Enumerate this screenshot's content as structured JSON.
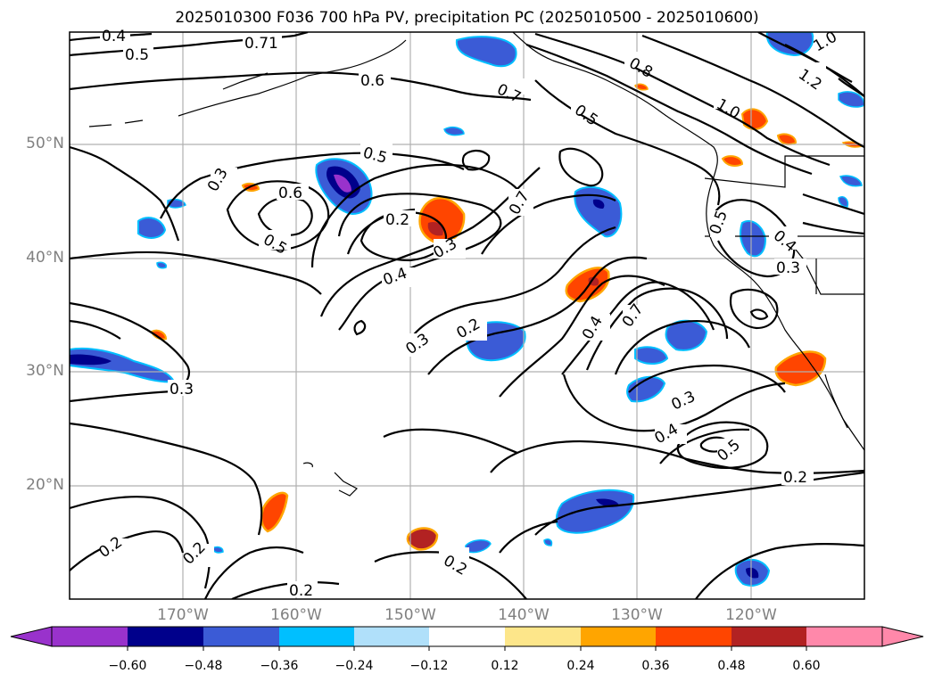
{
  "title": "2025010300 F036 700 hPa PV, precipitation PC (2025010500 - 2025010600)",
  "map": {
    "lat_labels": [
      "50°N",
      "40°N",
      "30°N",
      "20°N"
    ],
    "lon_labels": [
      "170°W",
      "160°W",
      "150°W",
      "140°W",
      "130°W",
      "120°W"
    ],
    "contour_labels": [
      "0.4",
      "0.5",
      "0.71",
      "0.6",
      "0.7",
      "0.5",
      "0.8",
      "1.0",
      "1.2",
      "1.0",
      "0.5",
      "0.3",
      "0.6",
      "0.5",
      "0.2",
      "0.3",
      "0.4",
      "0.7",
      "0.5",
      "0.4",
      "0.3",
      "0.4",
      "0.7",
      "0.3",
      "0.2",
      "0.3",
      "0.3",
      "0.4",
      "0.5",
      "0.2",
      "0.2",
      "0.2",
      "0.2",
      "0.2",
      "1.0",
      "0.4"
    ]
  },
  "colorbar": {
    "colors": [
      "#9932cc",
      "#00008b",
      "#3b5bd6",
      "#00bfff",
      "#b0e0fa",
      "#ffffff",
      "#fde68a",
      "#ffa500",
      "#ff4500",
      "#b22222",
      "#ff88aa"
    ],
    "tick_labels": [
      "−0.60",
      "−0.48",
      "−0.36",
      "−0.24",
      "−0.12",
      "0.12",
      "0.24",
      "0.36",
      "0.48",
      "0.60"
    ]
  }
}
